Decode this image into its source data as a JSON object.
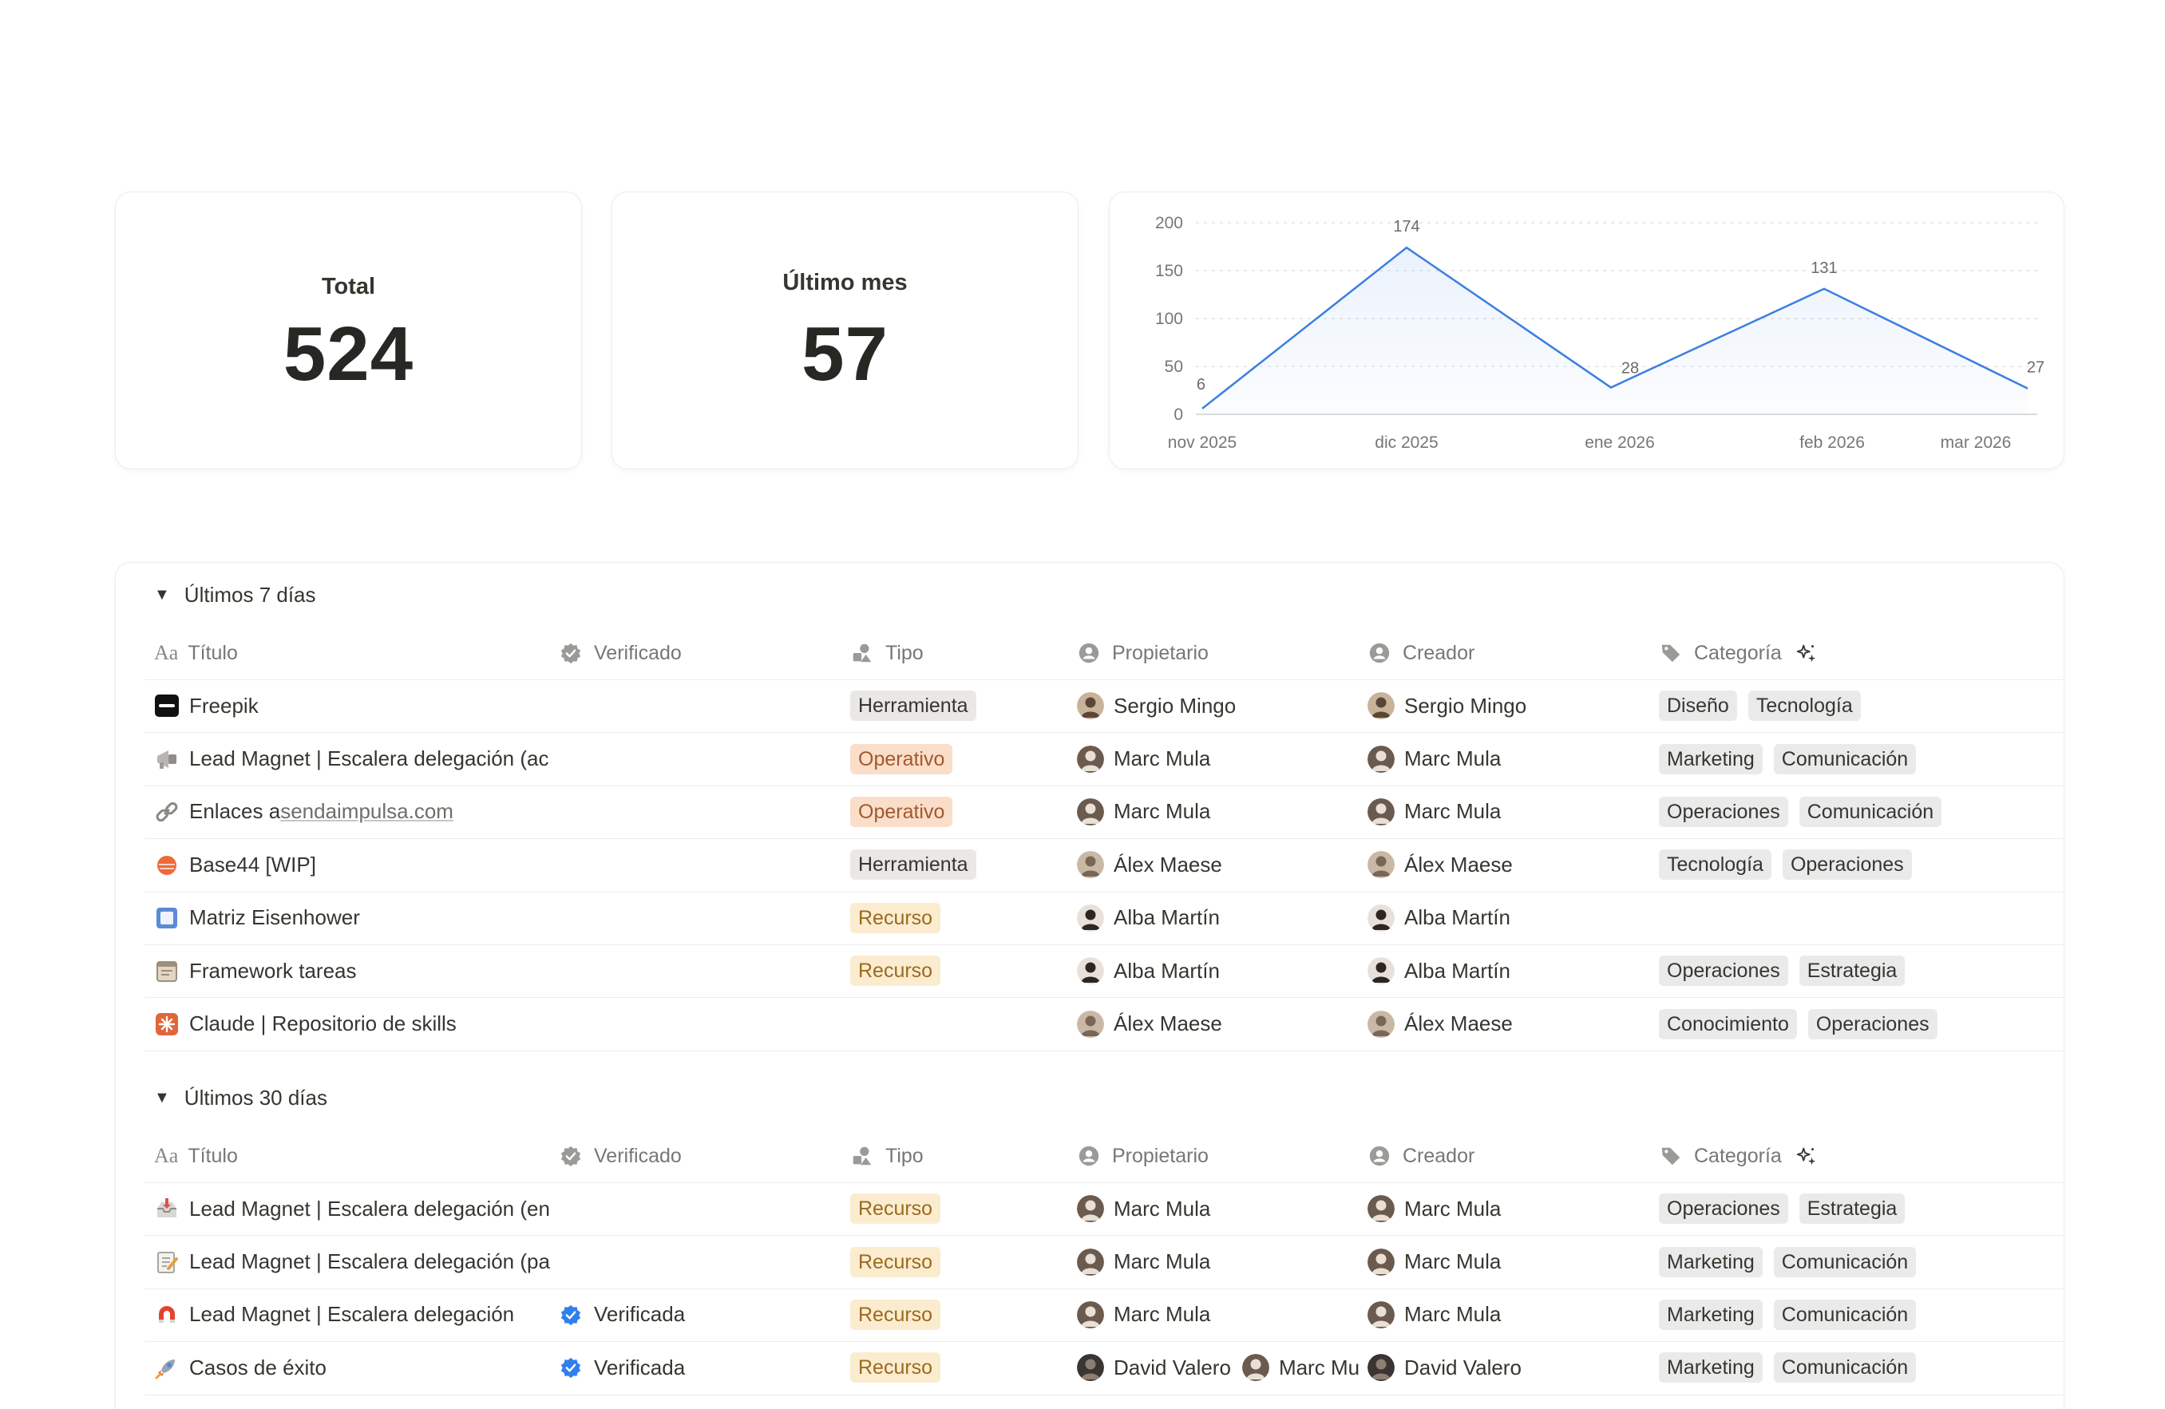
{
  "stats": {
    "total": {
      "label": "Total",
      "value": "524"
    },
    "last_month": {
      "label": "Último mes",
      "value": "57"
    }
  },
  "chart_data": {
    "type": "area",
    "categories": [
      "nov 2025",
      "dic 2025",
      "ene 2026",
      "feb 2026",
      "mar 2026"
    ],
    "values": [
      6,
      174,
      28,
      131,
      27
    ],
    "data_labels": [
      "6",
      "174",
      "28",
      "131",
      "27"
    ],
    "y_ticks": [
      "0",
      "50",
      "100",
      "150",
      "200"
    ],
    "ylim": [
      0,
      200
    ],
    "grid": true,
    "color": "#3b7fe0"
  },
  "columns": {
    "title": "Título",
    "verified": "Verificado",
    "type": "Tipo",
    "owner": "Propietario",
    "creator": "Creador",
    "category": "Categoría"
  },
  "groups": [
    {
      "label": "Últimos 7 días",
      "rows": [
        {
          "icon": "freepik-logo-icon",
          "title": "Freepik",
          "verified": "",
          "type": "Herramienta",
          "type_color": "gray",
          "owner": [
            "Sergio Mingo"
          ],
          "creator": "Sergio Mingo",
          "categories": [
            "Diseño",
            "Tecnología"
          ]
        },
        {
          "icon": "megaphone-icon",
          "title": "Lead Magnet | Escalera delegación (ac",
          "verified": "",
          "type": "Operativo",
          "type_color": "orange",
          "owner": [
            "Marc Mula"
          ],
          "creator": "Marc Mula",
          "categories": [
            "Marketing",
            "Comunicación"
          ]
        },
        {
          "icon": "link-icon",
          "title": "Enlaces a ",
          "title_link": "sendaimpulsa.com",
          "verified": "",
          "type": "Operativo",
          "type_color": "orange",
          "owner": [
            "Marc Mula"
          ],
          "creator": "Marc Mula",
          "categories": [
            "Operaciones",
            "Comunicación"
          ]
        },
        {
          "icon": "base44-logo-icon",
          "title": "Base44 [WIP]",
          "verified": "",
          "type": "Herramienta",
          "type_color": "gray",
          "owner": [
            "Álex Maese"
          ],
          "creator": "Álex Maese",
          "categories": [
            "Tecnología",
            "Operaciones"
          ]
        },
        {
          "icon": "matrix-square-icon",
          "title": "Matriz Eisenhower",
          "verified": "",
          "type": "Recurso",
          "type_color": "yellow",
          "owner": [
            "Alba Martín"
          ],
          "creator": "Alba Martín",
          "categories": []
        },
        {
          "icon": "calendar-icon",
          "title": "Framework tareas",
          "verified": "",
          "type": "Recurso",
          "type_color": "yellow",
          "owner": [
            "Alba Martín"
          ],
          "creator": "Alba Martín",
          "categories": [
            "Operaciones",
            "Estrategia"
          ]
        },
        {
          "icon": "claude-logo-icon",
          "title": "Claude | Repositorio de skills",
          "verified": "",
          "type": "",
          "type_color": "",
          "owner": [
            "Álex Maese"
          ],
          "creator": "Álex Maese",
          "categories": [
            "Conocimiento",
            "Operaciones"
          ]
        }
      ]
    },
    {
      "label": "Últimos 30 días",
      "rows": [
        {
          "icon": "inbox-tray-icon",
          "title": "Lead Magnet | Escalera delegación (en",
          "verified": "",
          "type": "Recurso",
          "type_color": "yellow",
          "owner": [
            "Marc Mula"
          ],
          "creator": "Marc Mula",
          "categories": [
            "Operaciones",
            "Estrategia"
          ]
        },
        {
          "icon": "memo-icon",
          "title": "Lead Magnet | Escalera delegación (pa",
          "verified": "",
          "type": "Recurso",
          "type_color": "yellow",
          "owner": [
            "Marc Mula"
          ],
          "creator": "Marc Mula",
          "categories": [
            "Marketing",
            "Comunicación"
          ]
        },
        {
          "icon": "magnet-icon",
          "title": "Lead Magnet | Escalera delegación",
          "verified": "Verificada",
          "type": "Recurso",
          "type_color": "yellow",
          "owner": [
            "Marc Mula"
          ],
          "creator": "Marc Mula",
          "categories": [
            "Marketing",
            "Comunicación"
          ]
        },
        {
          "icon": "rocket-icon",
          "title": "Casos de éxito",
          "verified": "Verificada",
          "type": "Recurso",
          "type_color": "yellow",
          "owner": [
            "David Valero",
            "Marc Mu"
          ],
          "creator": "David Valero",
          "categories": [
            "Marketing",
            "Comunicación"
          ]
        }
      ]
    }
  ]
}
